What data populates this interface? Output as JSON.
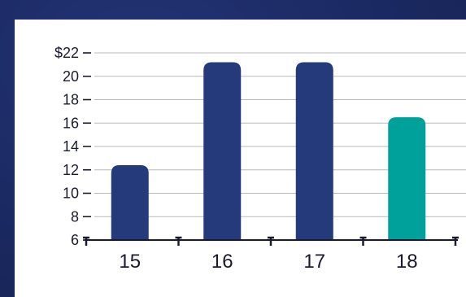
{
  "chart_data": {
    "type": "bar",
    "title": "",
    "xlabel": "",
    "ylabel": "",
    "categories": [
      "15",
      "16",
      "17",
      "18"
    ],
    "values": [
      12.4,
      21.2,
      21.2,
      16.5
    ],
    "bar_colors": [
      "#253a7a",
      "#253a7a",
      "#253a7a",
      "#00a19a"
    ],
    "ylim": [
      6,
      22
    ],
    "y_ticks": [
      {
        "value": 22,
        "label": "$22"
      },
      {
        "value": 20,
        "label": "20"
      },
      {
        "value": 18,
        "label": "18"
      },
      {
        "value": 16,
        "label": "16"
      },
      {
        "value": 14,
        "label": "14"
      },
      {
        "value": 12,
        "label": "12"
      },
      {
        "value": 10,
        "label": "10"
      },
      {
        "value": 8,
        "label": "8"
      },
      {
        "value": 6,
        "label": "6"
      }
    ],
    "grid": true,
    "legend": "none"
  },
  "colors": {
    "background": "#1b2a63",
    "panel": "#ffffff",
    "grid": "#b8b8b8",
    "axis": "#1a1a2e"
  }
}
